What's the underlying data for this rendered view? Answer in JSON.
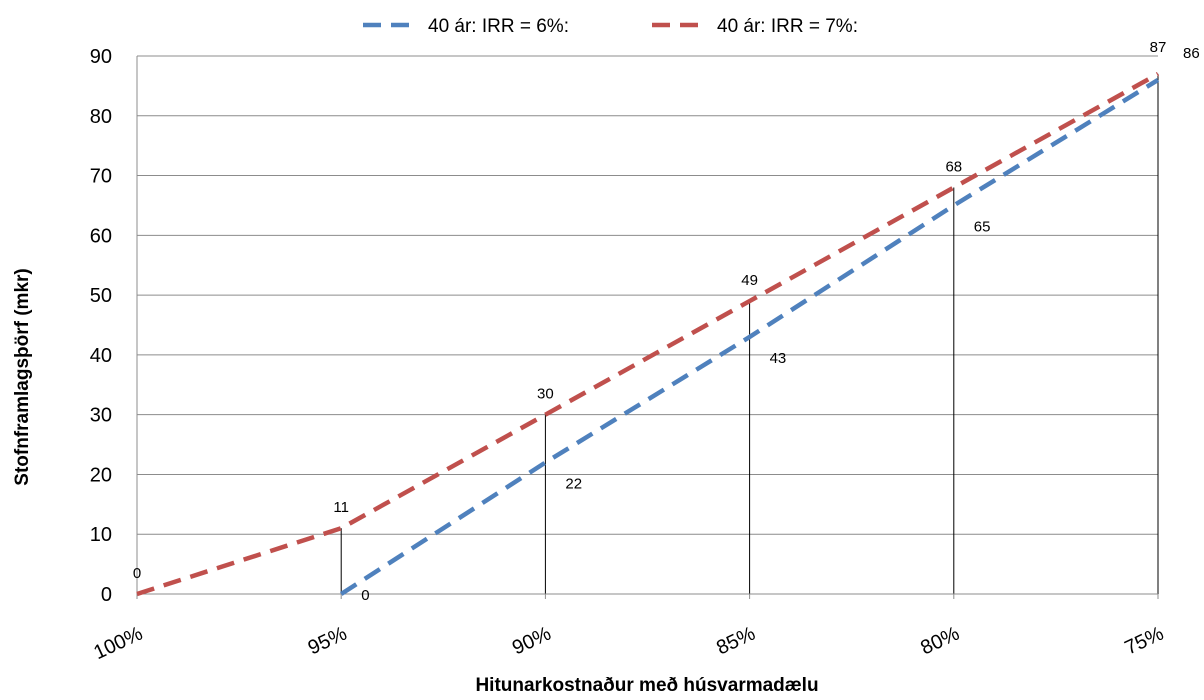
{
  "chart_data": {
    "type": "line",
    "title": "",
    "xlabel": "Hitunarkostnaður  með húsvarmadælu",
    "ylabel": "Stofnframlagsþörf (mkr)",
    "x_ticks": [
      "100%",
      "95%",
      "90%",
      "85%",
      "80%",
      "75%"
    ],
    "x_values": [
      100,
      95,
      90,
      85,
      80,
      75
    ],
    "xlim": [
      100,
      75
    ],
    "ylim": [
      0,
      90
    ],
    "y_ticks": [
      0,
      10,
      20,
      30,
      40,
      50,
      60,
      70,
      80,
      90
    ],
    "grid": true,
    "legend_position": "top",
    "vertical_reference_lines_at": [
      95,
      90,
      85,
      80,
      75
    ],
    "series": [
      {
        "name": "40 ár: IRR = 6%:",
        "color": "#4f81bd",
        "dash": "dashed",
        "x": [
          95,
          90,
          85,
          80,
          75
        ],
        "y": [
          0,
          22,
          43,
          65,
          86
        ],
        "labels": [
          "0",
          "22",
          "43",
          "65",
          "86"
        ]
      },
      {
        "name": "40 ár: IRR = 7%:",
        "color": "#c0504d",
        "dash": "dashed",
        "x": [
          100,
          95,
          90,
          85,
          80,
          75
        ],
        "y": [
          0,
          11,
          30,
          49,
          68,
          87
        ],
        "labels": [
          "0",
          "11",
          "30",
          "49",
          "68",
          "87"
        ]
      }
    ]
  }
}
